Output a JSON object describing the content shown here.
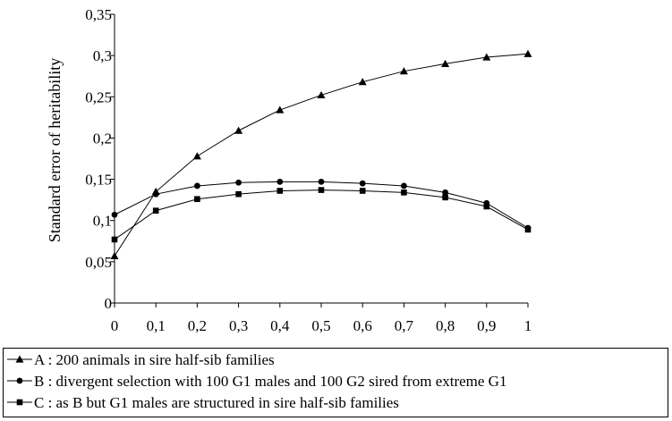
{
  "chart_data": {
    "type": "line",
    "ylabel": "Standard error of heritability",
    "xlabel": "",
    "title": "",
    "xlim": [
      0,
      1
    ],
    "ylim": [
      0,
      0.35
    ],
    "x": [
      0,
      0.1,
      0.2,
      0.3,
      0.4,
      0.5,
      0.6,
      0.7,
      0.8,
      0.9,
      1
    ],
    "x_tick_labels": [
      "0",
      "0,1",
      "0,2",
      "0,3",
      "0,4",
      "0,5",
      "0,6",
      "0,7",
      "0,8",
      "0,9",
      "1"
    ],
    "y_ticks": [
      0,
      0.05,
      0.1,
      0.15,
      0.2,
      0.25,
      0.3,
      0.35
    ],
    "y_tick_labels": [
      "0",
      "0,05",
      "0,1",
      "0,15",
      "0,2",
      "0,25",
      "0,3",
      "0,35"
    ],
    "grid": false,
    "legend_position": "bottom",
    "series": [
      {
        "name": "A : 200 animals in sire half-sib families",
        "marker": "triangle",
        "values": [
          0.057,
          0.135,
          0.178,
          0.209,
          0.234,
          0.252,
          0.268,
          0.281,
          0.29,
          0.298,
          0.302
        ]
      },
      {
        "name": "B : divergent selection with 100 G1 males and 100 G2 sired from extreme G1",
        "marker": "circle",
        "values": [
          0.107,
          0.132,
          0.142,
          0.146,
          0.147,
          0.147,
          0.145,
          0.142,
          0.134,
          0.121,
          0.091
        ]
      },
      {
        "name": "C : as B but G1 males are structured in sire half-sib families",
        "marker": "square",
        "values": [
          0.077,
          0.112,
          0.126,
          0.132,
          0.136,
          0.137,
          0.136,
          0.134,
          0.128,
          0.117,
          0.089
        ]
      }
    ]
  }
}
